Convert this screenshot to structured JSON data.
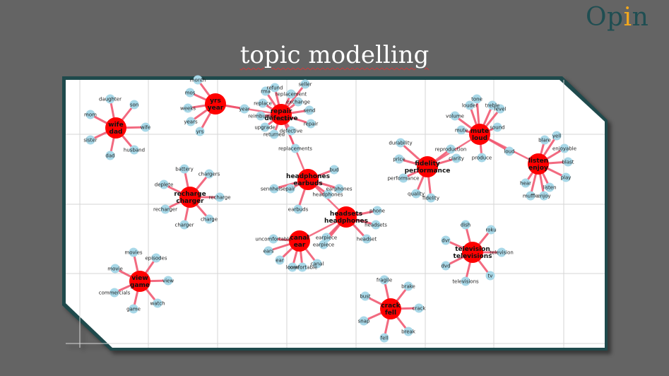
{
  "logo": {
    "before": "Op",
    "accent": "i",
    "after": "n"
  },
  "title": "topic modelling",
  "colors": {
    "hub": "#ff0000",
    "leaf": "#a8d8e8",
    "edge": "#f0506a",
    "border": "#1f4a4c",
    "panel": "#ffffff",
    "grid": "#d6d6d6"
  },
  "topics": [
    {
      "label": "wife\ndad",
      "words": [
        "daughter",
        "son",
        "mom",
        "wife",
        "sister",
        "husband",
        "dad"
      ]
    },
    {
      "label": "yrs\nyear",
      "words": [
        "month",
        "mos",
        "weeks",
        "years",
        "yrs",
        "year"
      ]
    },
    {
      "label": "repair\ndefective",
      "words": [
        "refund",
        "rma",
        "seller",
        "replacement",
        "replace",
        "exchange",
        "reimburse",
        "send",
        "upgrade",
        "returned",
        "repair",
        "return",
        "defective",
        "replacements"
      ]
    },
    {
      "label": "recharge\ncharger",
      "words": [
        "battery",
        "chargers",
        "deplete",
        "recharge",
        "recharger",
        "charger",
        "charge"
      ]
    },
    {
      "label": "headphones\nearbuds",
      "words": [
        "bud",
        "sennheiser",
        "pair",
        "earphones",
        "headphones",
        "earbuds"
      ]
    },
    {
      "label": "headsets\nheadphones",
      "words": [
        "phone",
        "headsets",
        "headset",
        "earpiece",
        "earpiece"
      ]
    },
    {
      "label": "canal\near",
      "words": [
        "uncomfortable",
        "ears",
        "ear",
        "loose",
        "comfortable",
        "canal"
      ]
    },
    {
      "label": "fidelity\nperformance",
      "words": [
        "durability",
        "price",
        "performance",
        "quality",
        "fidelity",
        "reproduction",
        "clarity"
      ]
    },
    {
      "label": "mute\nloud",
      "words": [
        "louder",
        "tone",
        "treble",
        "level",
        "volume",
        "sound",
        "mute",
        "produce",
        "loud"
      ]
    },
    {
      "label": "listen\nenjoy",
      "words": [
        "blare",
        "yell",
        "enjoyable",
        "blast",
        "play",
        "hear",
        "listen",
        "muffle",
        "enjoy"
      ]
    },
    {
      "label": "view\ngame",
      "words": [
        "movies",
        "episodes",
        "movie",
        "view",
        "commercials",
        "watch",
        "game"
      ]
    },
    {
      "label": "crack\nfell",
      "words": [
        "fragile",
        "brake",
        "bust",
        "crack",
        "snap",
        "break",
        "fell"
      ]
    },
    {
      "label": "television\ntelevisions",
      "words": [
        "dish",
        "roku",
        "dvr",
        "television",
        "dvd",
        "tv",
        "televisions"
      ]
    }
  ]
}
